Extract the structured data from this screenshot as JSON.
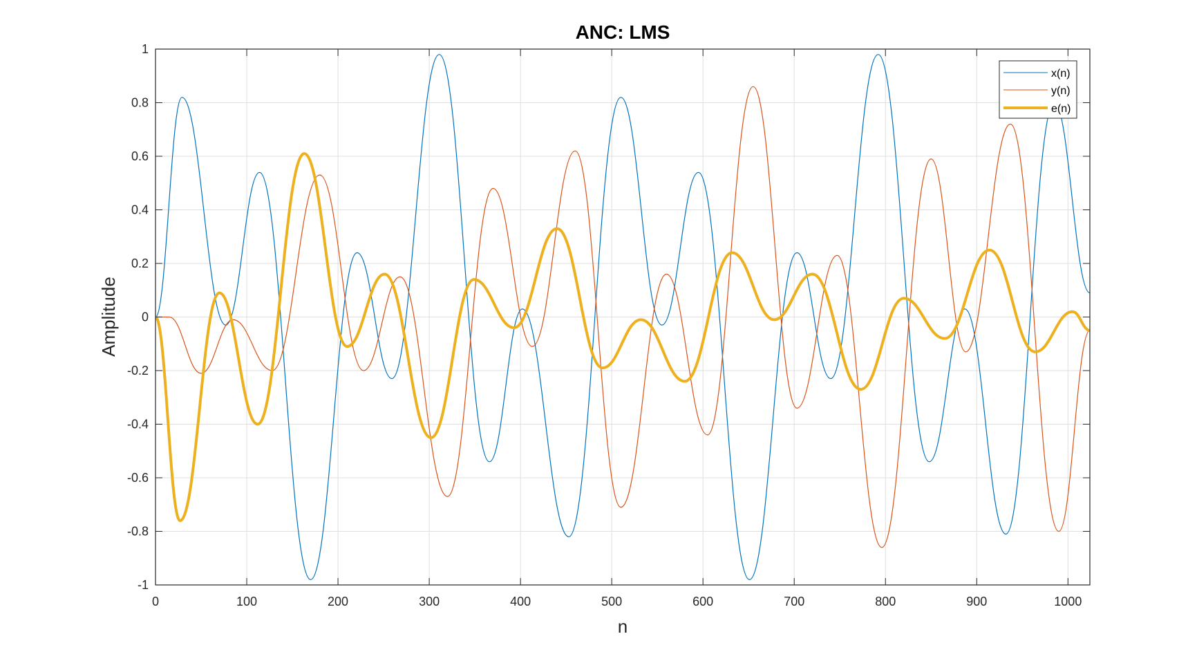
{
  "chart_data": {
    "type": "line",
    "title": "ANC: LMS",
    "xlabel": "n",
    "ylabel": "Amplitude",
    "xlim": [
      0,
      1024
    ],
    "ylim": [
      -1,
      1
    ],
    "grid": true,
    "legend_position": "top-right",
    "x_ticks": [
      "0",
      "100",
      "200",
      "300",
      "400",
      "500",
      "600",
      "700",
      "800",
      "900",
      "1000"
    ],
    "y_ticks": [
      "1",
      "0.8",
      "0.6",
      "0.4",
      "0.2",
      "0",
      "-0.2",
      "-0.4",
      "-0.6",
      "-0.8",
      "-1"
    ],
    "series": [
      {
        "name": "x(n)",
        "color": "#0072BD",
        "line_width": "thin",
        "x": [
          0,
          29,
          77,
          114,
          170,
          221,
          259,
          311,
          366,
          402,
          453,
          510,
          555,
          595,
          651,
          703,
          740,
          792,
          848,
          887,
          932,
          985,
          1024
        ],
        "y": [
          0,
          0.82,
          -0.03,
          0.54,
          -0.98,
          0.24,
          -0.23,
          0.98,
          -0.54,
          0.03,
          -0.82,
          0.82,
          -0.03,
          0.54,
          -0.98,
          0.24,
          -0.23,
          0.98,
          -0.54,
          0.03,
          -0.81,
          0.8,
          0.09
        ]
      },
      {
        "name": "y(n)",
        "color": "#D95319",
        "line_width": "thin",
        "x": [
          0,
          15,
          50,
          85,
          128,
          180,
          228,
          268,
          320,
          370,
          413,
          460,
          510,
          560,
          605,
          655,
          703,
          747,
          796,
          850,
          888,
          937,
          990,
          1024
        ],
        "y": [
          0,
          0,
          -0.21,
          -0.01,
          -0.2,
          0.53,
          -0.2,
          0.15,
          -0.67,
          0.48,
          -0.11,
          0.62,
          -0.71,
          0.16,
          -0.44,
          0.86,
          -0.34,
          0.23,
          -0.86,
          0.59,
          -0.13,
          0.72,
          -0.8,
          -0.05
        ]
      },
      {
        "name": "e(n)",
        "color": "#EDB120",
        "line_width": "thick",
        "x": [
          0,
          27,
          70,
          112,
          163,
          210,
          251,
          302,
          349,
          393,
          440,
          490,
          532,
          580,
          632,
          678,
          720,
          773,
          820,
          865,
          914,
          964,
          1005,
          1024
        ],
        "y": [
          0,
          -0.76,
          0.09,
          -0.4,
          0.61,
          -0.11,
          0.16,
          -0.45,
          0.14,
          -0.04,
          0.33,
          -0.19,
          -0.01,
          -0.24,
          0.24,
          -0.01,
          0.16,
          -0.27,
          0.07,
          -0.08,
          0.25,
          -0.13,
          0.02,
          -0.05
        ]
      }
    ]
  }
}
